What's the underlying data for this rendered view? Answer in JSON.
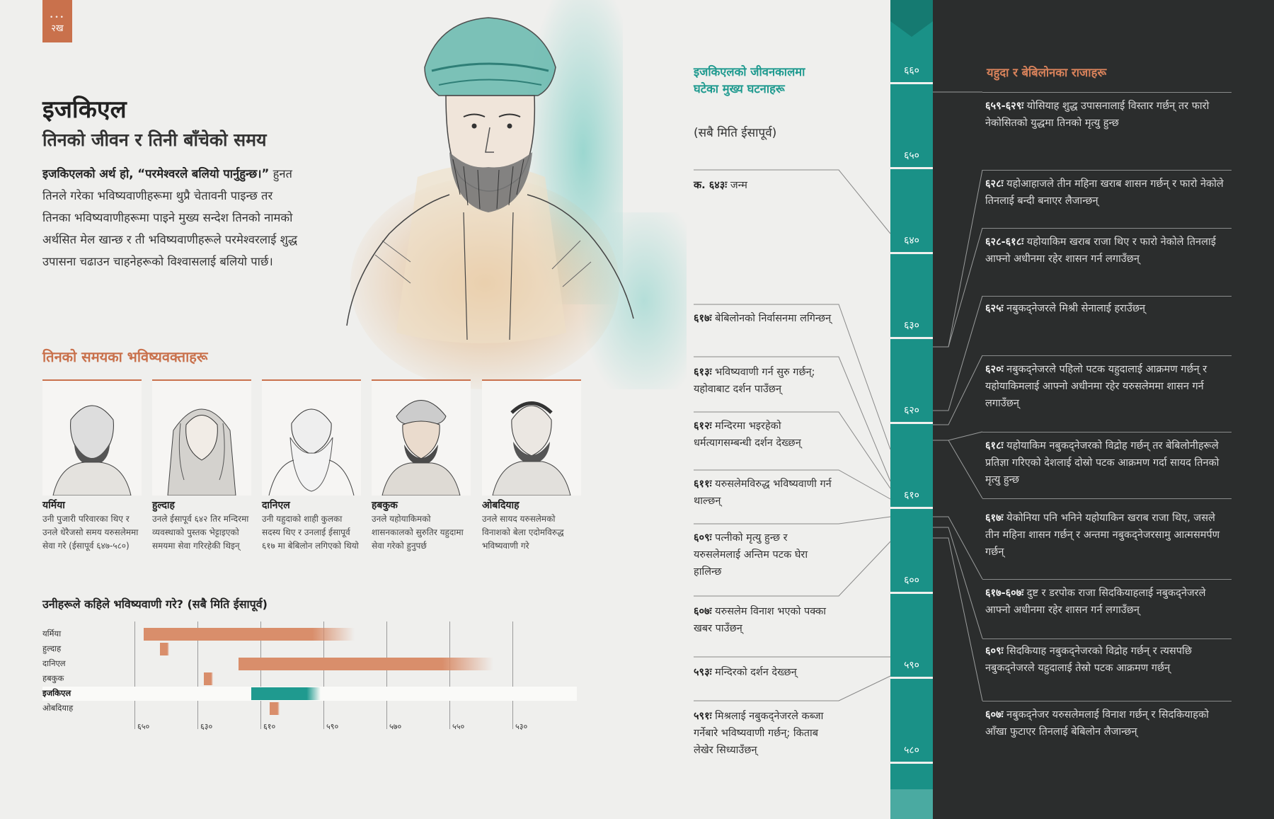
{
  "page_number": "२ख",
  "title": "इजकिएल",
  "subtitle": "तिनको जीवन र तिनी बाँचेको समय",
  "intro": {
    "bold": "इजकिएलको अर्थ हो, “परमेश्‍वरले बलियो पार्नुहुन्छ।”",
    "text": " हुनत तिनले गरेका भविष्यवाणीहरूमा थुप्रै चेतावनी पाइन्छ तर तिनका भविष्यवाणीहरूमा पाइने मुख्य सन्देश तिनको नामको अर्थसित मेल खान्छ र ती भविष्यवाणीहरूले परमेश्‍वरलाई शुद्ध उपासना चढाउन चाहनेहरूको विश्‍वासलाई बलियो पार्छ।"
  },
  "prophets_heading": "तिनको समयका भविष्यवक्ताहरू",
  "prophets": [
    {
      "name": "यर्मिया",
      "desc": "उनी पुजारी परिवारका थिए र उनले धेरैजसो समय यरुसलेममा सेवा गरे (ईसापूर्व ६४७-५८०)"
    },
    {
      "name": "हुल्दाह",
      "desc": "उनले ईसापूर्व ६४२ तिर मन्दिरमा व्यवस्थाको पुस्तक भेट्टाइएको समयमा सेवा गरिरहेकी थिइन्‌"
    },
    {
      "name": "दानिएल",
      "desc": "उनी यहुदाको शाही कुलका सदस्य थिए र उनलाई ईसापूर्व ६१७ मा बेबिलोन लगिएको थियो"
    },
    {
      "name": "हबकुक",
      "desc": "उनले यहोयाकिमको शासनकालको सुरुतिर यहुदामा सेवा गरेको हुनुपर्छ"
    },
    {
      "name": "ओबदियाह",
      "desc": "उनले सायद यरुसलेमको विनाशको बेला एदोमविरुद्ध भविष्यवाणी गरे"
    }
  ],
  "when_heading": {
    "bold": "उनीहरूले कहिले भविष्यवाणी गरे?",
    "note": " (सबै मिति ईसापूर्व)"
  },
  "gantt": {
    "ticks": [
      "६५०",
      "६३०",
      "६१०",
      "५९०",
      "५७०",
      "५५०",
      "५३०"
    ],
    "tick_values": [
      650,
      630,
      610,
      590,
      570,
      550,
      530
    ],
    "rows": [
      {
        "name": "यर्मिया",
        "start": 647,
        "end": 580,
        "color": "#d98e6b",
        "highlight": false
      },
      {
        "name": "हुल्दाह",
        "start": 642,
        "end": 639,
        "color": "#d98e6b",
        "highlight": false
      },
      {
        "name": "दानिएल",
        "start": 617,
        "end": 536,
        "color": "#d98e6b",
        "highlight": false
      },
      {
        "name": "हबकुक",
        "start": 628,
        "end": 625,
        "color": "#d98e6b",
        "highlight": false
      },
      {
        "name": "इजकिएल",
        "start": 613,
        "end": 591,
        "color": "#1f9a8f",
        "highlight": true
      },
      {
        "name": "ओबदियाह",
        "start": 607,
        "end": 604,
        "color": "#d98e6b",
        "highlight": false
      }
    ]
  },
  "timeline_heading": "इजकिएलको जीवनकालमा घटेका मुख्य घटनाहरू",
  "timeline_note": "(सबै मिति ईसापूर्व)",
  "ezekiel_events": [
    {
      "date": "क. ६४३ः",
      "text": " जन्म"
    },
    {
      "date": "६१७ः",
      "text": " बेबिलोनको निर्वासनमा लगिन्छन्‌"
    },
    {
      "date": "६१३ः",
      "text": " भविष्यवाणी गर्न सुरु गर्छन्‌; यहोवाबाट दर्शन पाउँछन्‌"
    },
    {
      "date": "६१२ः",
      "text": " मन्दिरमा भइरहेको धर्मत्यागसम्बन्धी दर्शन देख्छन्‌"
    },
    {
      "date": "६११ः",
      "text": " यरुसलेमविरुद्ध भविष्यवाणी गर्न थाल्छन्‌"
    },
    {
      "date": "६०९ः",
      "text": " पत्नीको मृत्यु हुन्छ र यरुसलेमलाई अन्तिम पटक घेरा हालिन्छ"
    },
    {
      "date": "६०७ः",
      "text": " यरुसलेम विनाश भएको पक्‍का खबर पाउँछन्‌"
    },
    {
      "date": "५९३ः",
      "text": " मन्दिरको दर्शन देख्छन्‌"
    },
    {
      "date": "५९१ः",
      "text": " मिश्रलाई नबुकद्‌नेजरले कब्जा गर्नेबारे भविष्यवाणी गर्छन्‌; किताब लेखेर सिध्याउँछन्‌"
    }
  ],
  "ruler_labels": [
    "६६०",
    "६५०",
    "६४०",
    "६३०",
    "६२०",
    "६१०",
    "६००",
    "५९०",
    "५८०"
  ],
  "kings_heading": "यहुदा र बेबिलोनका राजाहरू",
  "kings_events": [
    {
      "date": "६५९-६२९ः",
      "text": " योसियाह शुद्ध उपासनालाई विस्तार गर्छन्‌ तर फारो नेकोसितको युद्धमा तिनको मृत्यु हुन्छ"
    },
    {
      "date": "६२८ः",
      "text": " यहोआहाजले तीन महिना खराब शासन गर्छन्‌ र फारो नेकोले तिनलाई बन्दी बनाएर लैजान्छन्‌"
    },
    {
      "date": "६२८-६१८ः",
      "text": " यहोयाकिम खराब राजा थिए र फारो नेकोले तिनलाई आफ्नो अधीनमा रहेर शासन गर्न लगाउँछन्‌"
    },
    {
      "date": "६२५ः",
      "text": " नबुकद्‌नेजरले मिश्री सेनालाई हराउँछन्‌"
    },
    {
      "date": "६२०ः",
      "text": " नबुकद्‌नेजरले पहिलो पटक यहुदालाई आक्रमण गर्छन्‌ र यहोयाकिमलाई आफ्नो अधीनमा रहेर यरुसलेममा शासन गर्न लगाउँछन्‌"
    },
    {
      "date": "६१८ः",
      "text": " यहोयाकिम नबुकद्‌नेजरको विद्रोह गर्छन्‌ तर बेबिलोनीहरूले प्रतिज्ञा गरिएको देशलाई दोस्रो पटक आक्रमण गर्दा सायद तिनको मृत्यु हुन्छ"
    },
    {
      "date": "६१७ः",
      "text": " येकोनिया पनि भनिने यहोयाकिन खराब राजा थिए, जसले तीन महिना शासन गर्छन्‌ र अन्तमा नबुकद्‌नेजरसामु आत्मसमर्पण गर्छन्‌"
    },
    {
      "date": "६१७-६०७ः",
      "text": " दुष्ट र डरपोक राजा सिदकियाहलाई नबुकद्‌नेजरले आफ्नो अधीनमा रहेर शासन गर्न लगाउँछन्‌"
    },
    {
      "date": "६०९ः",
      "text": " सिदकियाह नबुकद्‌नेजरको विद्रोह गर्छन्‌ र त्यसपछि नबुकद्‌नेजरले यहुदालाई तेस्रो पटक आक्रमण गर्छन्‌"
    },
    {
      "date": "६०७ः",
      "text": " नबुकद्‌नेजर यरुसलेमलाई विनाश गर्छन्‌ र सिदकियाहको आँखा फुटाएर तिनलाई बेबिलोन लैजान्छन्‌"
    }
  ],
  "colors": {
    "teal": "#1f9a8f",
    "orange": "#c9714c",
    "dark_panel": "#2b2d2d"
  }
}
